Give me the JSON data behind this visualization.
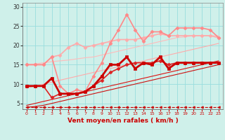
{
  "xlabel": "Vent moyen/en rafales ( km/h )",
  "background_color": "#cff0ea",
  "grid_color": "#99dddd",
  "xlim": [
    -0.5,
    23.5
  ],
  "ylim": [
    3.5,
    31
  ],
  "yticks": [
    5,
    10,
    15,
    20,
    25,
    30
  ],
  "xticks": [
    0,
    1,
    2,
    3,
    4,
    5,
    6,
    7,
    8,
    9,
    10,
    11,
    12,
    13,
    14,
    15,
    16,
    17,
    18,
    19,
    20,
    21,
    22,
    23
  ],
  "x": [
    0,
    1,
    2,
    3,
    4,
    5,
    6,
    7,
    8,
    9,
    10,
    11,
    12,
    13,
    14,
    15,
    16,
    17,
    18,
    19,
    20,
    21,
    22,
    23
  ],
  "series": [
    {
      "y": [
        4.0,
        4.0,
        4.0,
        4.0,
        4.0,
        4.0,
        4.0,
        4.0,
        4.0,
        4.0,
        4.0,
        4.0,
        4.0,
        4.0,
        4.0,
        4.0,
        4.0,
        4.0,
        4.0,
        4.0,
        4.0,
        4.0,
        4.0,
        4.0
      ],
      "color": "#cc0000",
      "lw": 0.8,
      "marker": "<",
      "ms": 2.5,
      "linestyle": "--",
      "zorder": 2
    },
    {
      "y": [
        4.0,
        4.2,
        4.5,
        5.0,
        5.5,
        6.0,
        6.5,
        7.0,
        7.5,
        8.0,
        8.5,
        9.0,
        9.5,
        10.0,
        10.5,
        11.0,
        11.5,
        12.0,
        12.5,
        13.0,
        13.5,
        14.0,
        14.5,
        15.0
      ],
      "color": "#cc1111",
      "lw": 0.8,
      "marker": null,
      "ms": 0,
      "linestyle": "-",
      "zorder": 2
    },
    {
      "y": [
        4.5,
        5.0,
        5.5,
        6.0,
        6.5,
        7.0,
        7.5,
        8.0,
        8.5,
        9.0,
        9.5,
        10.0,
        10.5,
        11.0,
        11.5,
        12.0,
        12.5,
        13.0,
        13.5,
        14.0,
        14.5,
        15.0,
        15.5,
        16.0
      ],
      "color": "#dd1111",
      "lw": 0.8,
      "marker": null,
      "ms": 0,
      "linestyle": "-",
      "zorder": 2
    },
    {
      "y": [
        9.0,
        9.5,
        10.0,
        10.5,
        11.0,
        11.5,
        12.0,
        12.5,
        13.0,
        13.5,
        14.0,
        14.5,
        15.0,
        15.5,
        16.0,
        16.5,
        17.0,
        17.5,
        18.0,
        18.5,
        19.0,
        19.5,
        20.0,
        20.5
      ],
      "color": "#ffaaaa",
      "lw": 0.8,
      "marker": null,
      "ms": 0,
      "linestyle": "-",
      "zorder": 2
    },
    {
      "y": [
        15.0,
        15.2,
        15.5,
        15.8,
        16.0,
        16.2,
        16.5,
        16.8,
        17.0,
        17.5,
        18.0,
        18.5,
        19.0,
        19.5,
        20.0,
        20.5,
        21.0,
        21.5,
        22.0,
        22.2,
        22.5,
        22.5,
        22.5,
        22.5
      ],
      "color": "#ffbbbb",
      "lw": 0.8,
      "marker": null,
      "ms": 0,
      "linestyle": "-",
      "zorder": 2
    },
    {
      "y": [
        9.5,
        9.5,
        9.5,
        11.5,
        7.5,
        7.5,
        7.5,
        8.0,
        9.5,
        12.0,
        15.0,
        15.0,
        17.0,
        14.0,
        15.5,
        15.0,
        17.0,
        14.0,
        15.5,
        15.5,
        15.5,
        15.5,
        15.5,
        15.5
      ],
      "color": "#cc0000",
      "lw": 2.0,
      "marker": "s",
      "ms": 2.5,
      "linestyle": "-",
      "zorder": 5
    },
    {
      "y": [
        9.5,
        9.5,
        9.5,
        6.5,
        7.5,
        7.5,
        7.5,
        8.0,
        9.5,
        11.0,
        13.0,
        14.0,
        15.0,
        15.5,
        15.5,
        15.5,
        16.0,
        15.0,
        15.5,
        15.5,
        15.5,
        15.5,
        15.5,
        15.5
      ],
      "color": "#dd2222",
      "lw": 1.2,
      "marker": "D",
      "ms": 2.5,
      "linestyle": "-",
      "zorder": 4
    },
    {
      "y": [
        15.0,
        15.0,
        15.0,
        17.0,
        9.5,
        7.5,
        8.5,
        8.0,
        12.0,
        15.5,
        20.5,
        24.0,
        28.0,
        24.0,
        21.0,
        23.5,
        23.5,
        22.5,
        24.5,
        24.5,
        24.5,
        24.5,
        24.0,
        22.0
      ],
      "color": "#ff8888",
      "lw": 1.2,
      "marker": "D",
      "ms": 2.5,
      "linestyle": "-",
      "zorder": 4
    },
    {
      "y": [
        15.0,
        15.0,
        15.0,
        17.0,
        17.5,
        19.5,
        20.5,
        19.5,
        20.0,
        20.5,
        21.0,
        21.5,
        21.5,
        21.5,
        22.0,
        22.5,
        23.0,
        22.5,
        22.5,
        22.5,
        22.5,
        22.5,
        22.5,
        22.0
      ],
      "color": "#ffaaaa",
      "lw": 1.2,
      "marker": "D",
      "ms": 2.5,
      "linestyle": "-",
      "zorder": 3
    }
  ]
}
